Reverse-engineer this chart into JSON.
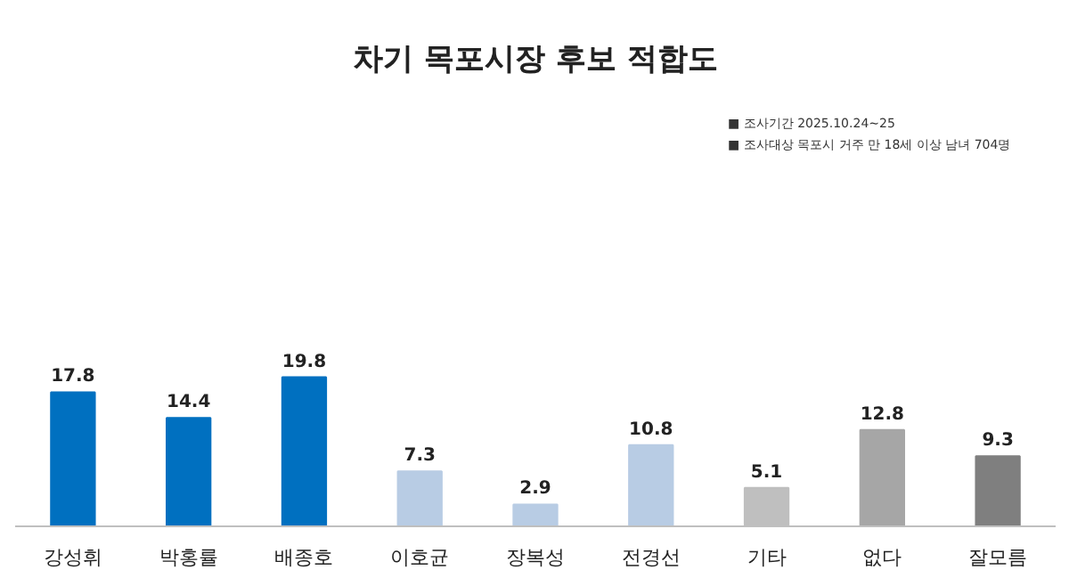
{
  "chart_data": {
    "type": "bar",
    "title": "차기 목포시장 후보 적합도",
    "categories": [
      "강성휘",
      "박홍률",
      "배종호",
      "이호균",
      "장복성",
      "전경선",
      "기타",
      "없다",
      "잘모름"
    ],
    "values": [
      17.8,
      14.4,
      19.8,
      7.3,
      2.9,
      10.8,
      5.1,
      12.8,
      9.3
    ],
    "colors": [
      "#0070c0",
      "#0070c0",
      "#0070c0",
      "#b8cce4",
      "#b8cce4",
      "#b8cce4",
      "#bfbfbf",
      "#a6a6a6",
      "#7f7f7f"
    ],
    "data_labels": true,
    "annotations": [
      "■ 조사기간 2025.10.24~25",
      "■ 조사대상 목포시 거주 만 18세 이상 남녀 704명"
    ]
  }
}
